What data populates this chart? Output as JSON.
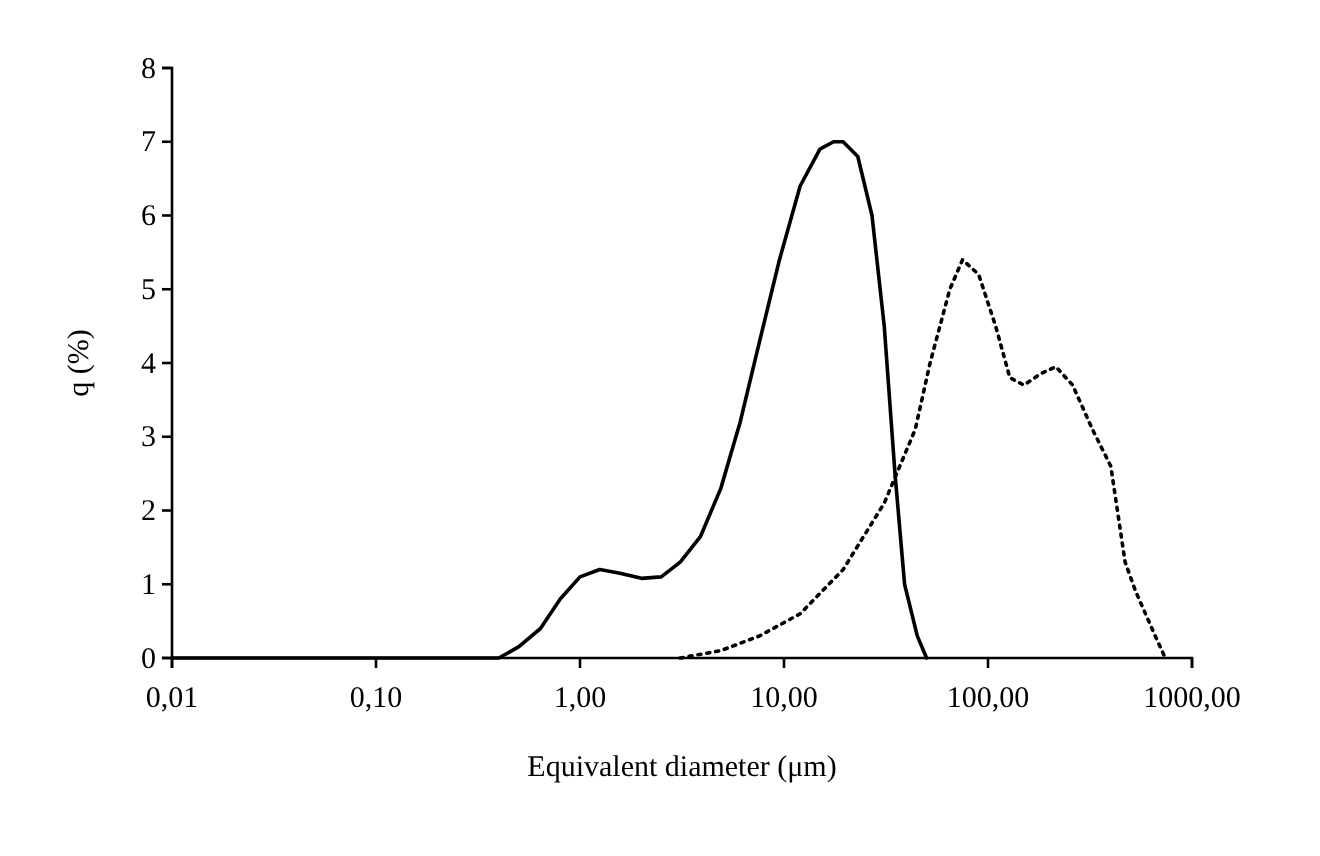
{
  "chart_data": {
    "type": "line",
    "xlabel": "Equivalent diameter (μm)",
    "ylabel": "q (%)",
    "log": "x",
    "xlim": [
      0.01,
      1000
    ],
    "xticks": [
      {
        "value": 0.01,
        "label": "0,01"
      },
      {
        "value": 0.1,
        "label": "0,10"
      },
      {
        "value": 1,
        "label": "1,00"
      },
      {
        "value": 10,
        "label": "10,00"
      },
      {
        "value": 100,
        "label": "100,00"
      },
      {
        "value": 1000,
        "label": "1000,00"
      }
    ],
    "ylim": [
      0,
      8
    ],
    "yticks": [
      0,
      1,
      2,
      3,
      4,
      5,
      6,
      7,
      8
    ],
    "grid": false,
    "marker": "none",
    "series": [
      {
        "color": "#000000",
        "line_style": "solid",
        "x": [
          0.01,
          0.1,
          0.4,
          0.5,
          0.64,
          0.8,
          1.0,
          1.25,
          1.57,
          2.0,
          2.5,
          3.1,
          3.9,
          4.9,
          6.1,
          7.6,
          9.5,
          12,
          15,
          17.5,
          19.5,
          23,
          27,
          31,
          35,
          39,
          45,
          50
        ],
        "values": [
          0,
          0,
          0,
          0.15,
          0.4,
          0.8,
          1.1,
          1.2,
          1.15,
          1.08,
          1.1,
          1.3,
          1.65,
          2.3,
          3.2,
          4.3,
          5.4,
          6.4,
          6.9,
          7.0,
          7.0,
          6.8,
          6.0,
          4.5,
          2.5,
          1.0,
          0.3,
          0
        ]
      },
      {
        "color": "#000000",
        "line_style": "dotted",
        "x": [
          3.1,
          4.9,
          7.6,
          12,
          19.5,
          31,
          44,
          52,
          65,
          75,
          90,
          109,
          128,
          150,
          180,
          215,
          260,
          325,
          400,
          470,
          530,
          660,
          740
        ],
        "values": [
          0,
          0.1,
          0.3,
          0.6,
          1.2,
          2.1,
          3.1,
          4.0,
          5.0,
          5.4,
          5.2,
          4.5,
          3.8,
          3.7,
          3.85,
          3.95,
          3.7,
          3.1,
          2.6,
          1.3,
          0.9,
          0.3,
          0
        ]
      }
    ]
  }
}
